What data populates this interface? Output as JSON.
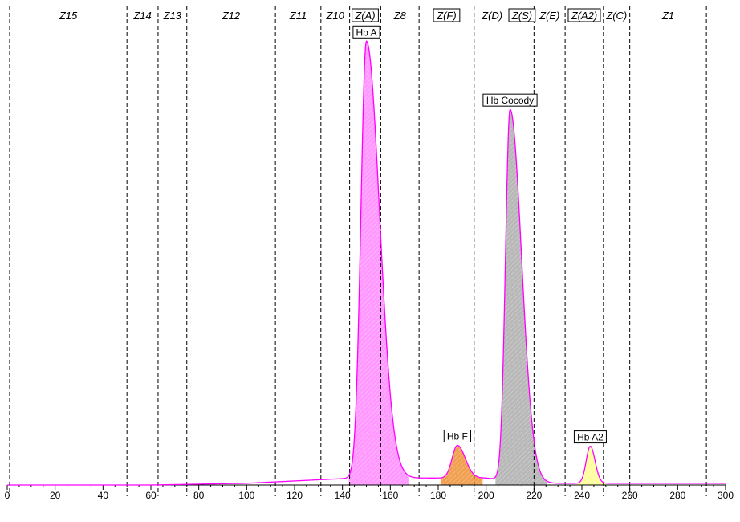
{
  "chart_data": {
    "type": "line",
    "title": "",
    "xlabel": "",
    "ylabel": "",
    "xlim": [
      0,
      300
    ],
    "x_ticks": [
      0,
      20,
      40,
      60,
      80,
      100,
      120,
      140,
      160,
      180,
      200,
      220,
      240,
      260,
      280,
      300
    ],
    "x_tick_labels": [
      "0",
      "20",
      "40",
      "60",
      "80",
      "100",
      "120",
      "140",
      "160",
      "180",
      "200",
      "220",
      "240",
      "260",
      "280",
      "300"
    ],
    "zone_boundaries": [
      1,
      50,
      63,
      75,
      112,
      131,
      143,
      156,
      172,
      195,
      210,
      220,
      233,
      249,
      260,
      292
    ],
    "zones": [
      {
        "label": "Z15",
        "boxed": false
      },
      {
        "label": "Z14",
        "boxed": false
      },
      {
        "label": "Z13",
        "boxed": false
      },
      {
        "label": "Z12",
        "boxed": false
      },
      {
        "label": "Z11",
        "boxed": false
      },
      {
        "label": "Z10",
        "boxed": false
      },
      {
        "label": "Z(A)",
        "boxed": true
      },
      {
        "label": "Z8",
        "boxed": false
      },
      {
        "label": "Z(F)",
        "boxed": true
      },
      {
        "label": "Z(D)",
        "boxed": false
      },
      {
        "label": "Z(S)",
        "boxed": true
      },
      {
        "label": "Z(E)",
        "boxed": false
      },
      {
        "label": "Z(A2)",
        "boxed": true
      },
      {
        "label": "Z(C)",
        "boxed": false
      },
      {
        "label": "Z1",
        "boxed": false
      }
    ],
    "trace_color": "#ff00ff",
    "peaks": [
      {
        "label": "Hb A",
        "center": 150,
        "height": 1.0,
        "sigma_left": 2.3,
        "sigma_right": 5.5,
        "fill": "#ff99ff"
      },
      {
        "label": "Hb F",
        "center": 188,
        "height": 0.075,
        "sigma_left": 2.2,
        "sigma_right": 3.3,
        "fill": "#f0a050"
      },
      {
        "label": "Hb Cocody",
        "center": 210,
        "height": 0.85,
        "sigma_left": 1.9,
        "sigma_right": 4.8,
        "fill": "#b8b8b8"
      },
      {
        "label": "Hb A2",
        "center": 243.5,
        "height": 0.085,
        "sigma_left": 1.7,
        "sigma_right": 2.0,
        "fill": "#ffffa0"
      }
    ]
  }
}
